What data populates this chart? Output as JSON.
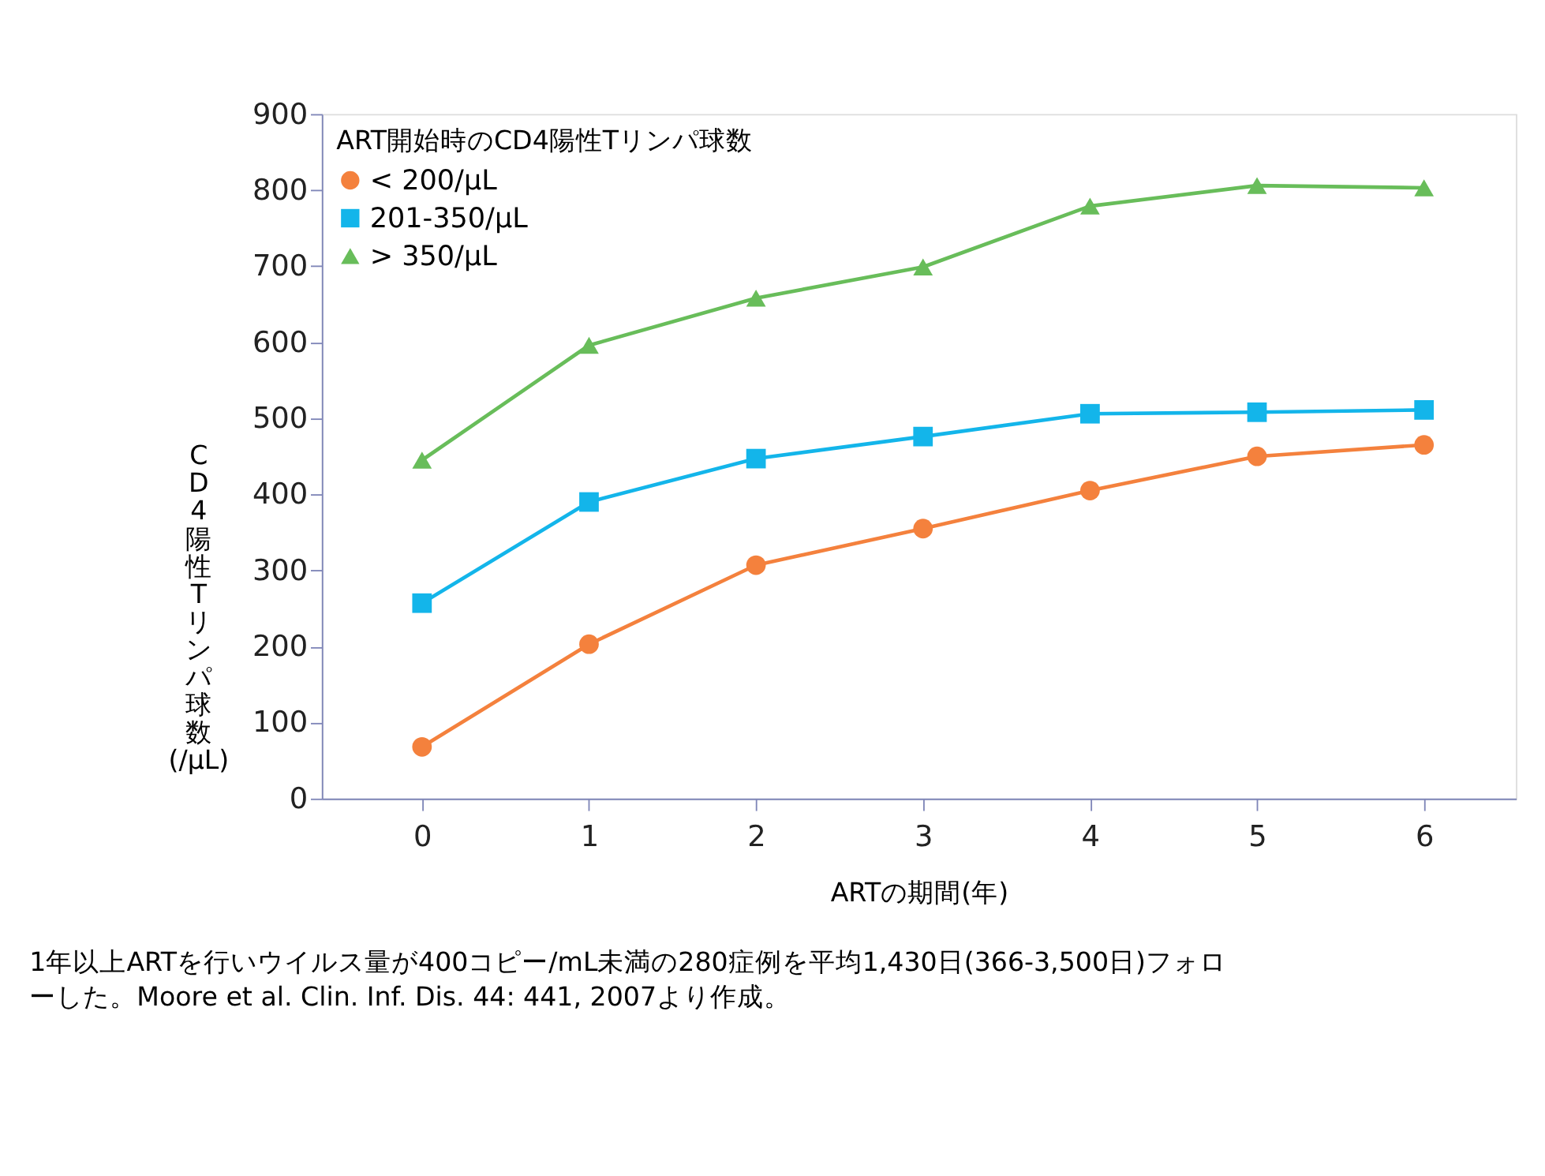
{
  "chart_data": {
    "type": "line",
    "xlabel": "ARTの期間(年)",
    "ylabel": "CD4陽性Tリンパ球数 (/μL)",
    "legend_title": "ART開始時のCD4陽性Tリンパ球数",
    "x": [
      0,
      1,
      2,
      3,
      4,
      5,
      6
    ],
    "series": [
      {
        "name": "< 200/μL",
        "color": "#f4813d",
        "marker": "circle",
        "values": [
          68,
          203,
          307,
          355,
          405,
          450,
          465
        ]
      },
      {
        "name": "201-350/μL",
        "color": "#13b5ea",
        "marker": "square",
        "values": [
          257,
          390,
          447,
          476,
          506,
          508,
          511
        ]
      },
      {
        "name": "> 350/μL",
        "color": "#68bd5a",
        "marker": "triangle",
        "values": [
          445,
          596,
          658,
          699,
          779,
          806,
          803
        ]
      }
    ],
    "xlim": [
      -0.6,
      6.55
    ],
    "xticks": [
      0,
      1,
      2,
      3,
      4,
      5,
      6
    ],
    "ylim": [
      0,
      900
    ],
    "yticks": [
      0,
      100,
      200,
      300,
      400,
      500,
      600,
      700,
      800,
      900
    ],
    "grid": false,
    "legend": "top left",
    "line_style": "solid",
    "annotations": [
      "1年以上ARTを行いウイルス量が400コピー/mL未満の280症例を平均1,430日(366-3,500日)フォローした。Moore et al. Clin. Inf. Dis. 44: 441, 2007より作成。"
    ]
  }
}
